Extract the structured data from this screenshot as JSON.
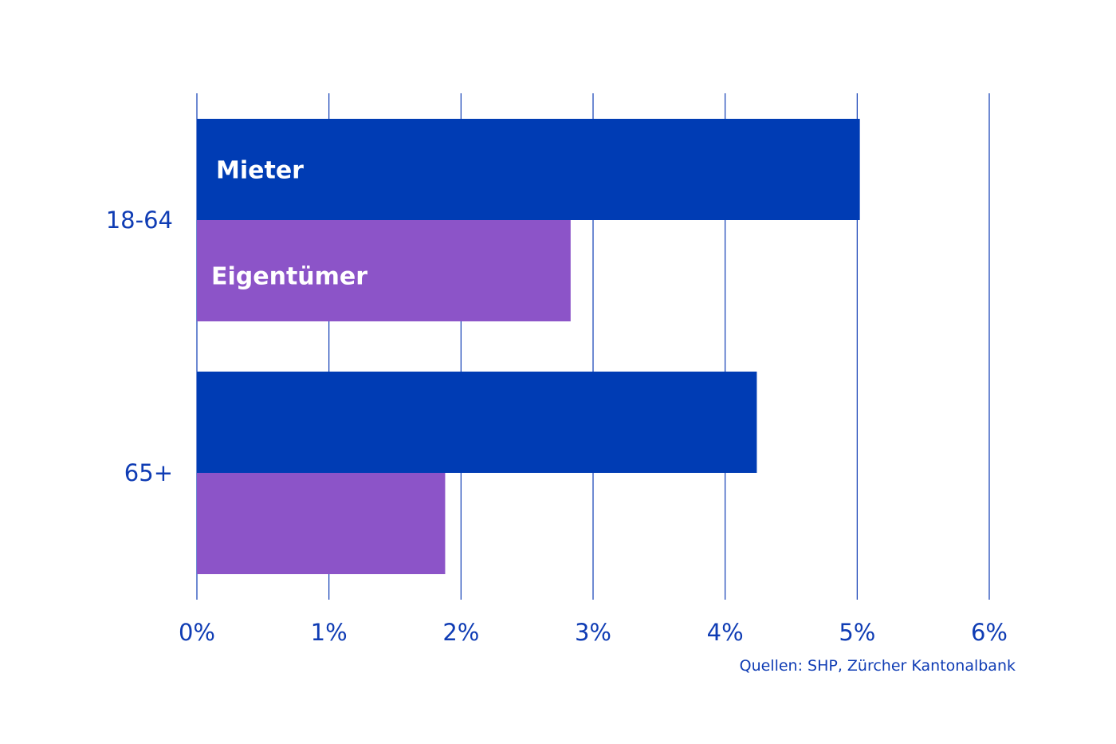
{
  "chart_data": {
    "type": "bar",
    "orientation": "horizontal",
    "categories": [
      "18-64",
      "65+"
    ],
    "series": [
      {
        "name": "Mieter",
        "values": [
          5.02,
          4.24
        ],
        "color": "#003cb4"
      },
      {
        "name": "Eigentümer",
        "values": [
          2.83,
          1.88
        ],
        "color": "#8c54c8"
      }
    ],
    "xlim": [
      0,
      6
    ],
    "xticks": [
      "0%",
      "1%",
      "2%",
      "3%",
      "4%",
      "5%",
      "6%"
    ],
    "grid": true,
    "legend": "inline labels inside first category bars"
  },
  "source": "Quellen: SHP, Zürcher Kantonalbank"
}
